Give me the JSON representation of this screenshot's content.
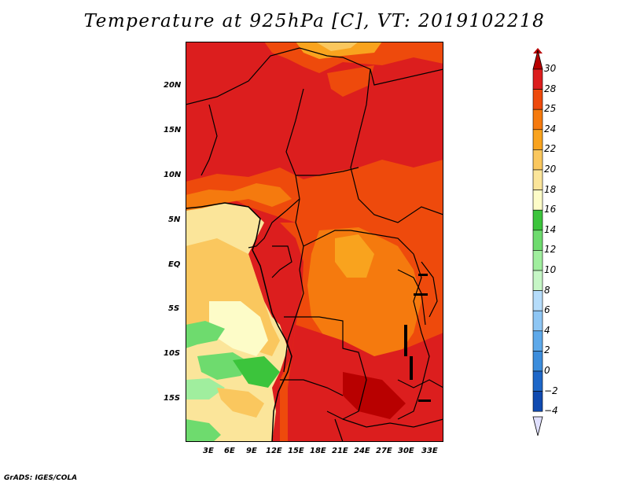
{
  "title": "Temperature at 925hPa [C], VT: 2019102218",
  "footer": "GrADS: IGES/COLA",
  "map": {
    "region": "Central Africa",
    "lon_ticks": [
      "3E",
      "6E",
      "9E",
      "12E",
      "15E",
      "18E",
      "21E",
      "24E",
      "27E",
      "30E",
      "33E"
    ],
    "lat_ticks": [
      "20N",
      "15N",
      "10N",
      "5N",
      "EQ",
      "5S",
      "10S",
      "15S"
    ]
  },
  "colorbar": {
    "levels": [
      "30",
      "28",
      "25",
      "24",
      "22",
      "20",
      "18",
      "16",
      "14",
      "12",
      "10",
      "8",
      "6",
      "4",
      "2",
      "0",
      "−2",
      "−4"
    ],
    "colors": {
      "above_30": "#b80000",
      "28_30": "#dc1e1e",
      "25_28": "#ee4a0c",
      "24_25": "#f57a0e",
      "22_24": "#f9a31e",
      "20_22": "#fac75e",
      "18_20": "#fbe59a",
      "16_18": "#fdfcc8",
      "14_16": "#3cc43c",
      "12_14": "#6edb6e",
      "10_12": "#a0ee9e",
      "8_10": "#c6f6c6",
      "6_8": "#b5dcfa",
      "4_6": "#8ec6f4",
      "2_4": "#5ea9ea",
      "0_2": "#3c8ddc",
      "neg2_0": "#1e67c8",
      "neg4_neg2": "#104ab0",
      "below_neg4": "#0a1a78",
      "bottom_arrow": "#e0e0ff"
    }
  }
}
